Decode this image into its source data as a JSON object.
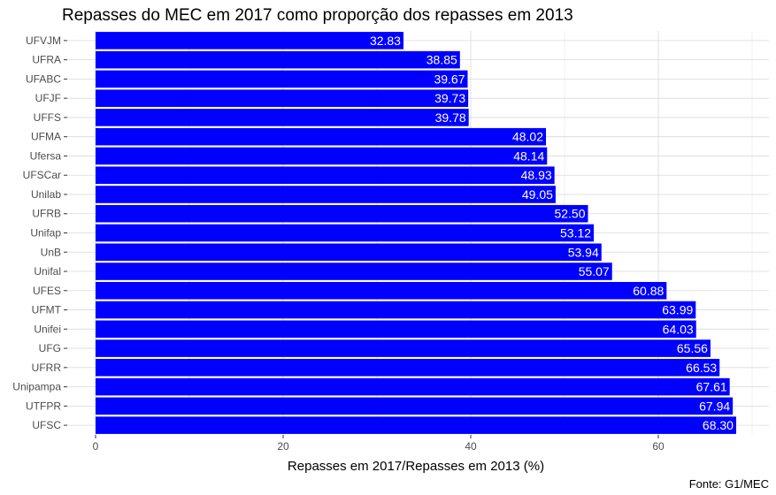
{
  "chart_data": {
    "type": "bar",
    "orientation": "horizontal",
    "title": "Repasses do MEC em 2017 como proporção dos repasses em 2013",
    "xlabel": "Repasses em 2017/Repasses em 2013 (%)",
    "ylabel": "",
    "caption": "Fonte: G1/MEC",
    "xlim": [
      0,
      70
    ],
    "x_ticks": [
      0,
      20,
      40,
      60
    ],
    "grid": true,
    "bar_color": "#0000ff",
    "categories": [
      "UFVJM",
      "UFRA",
      "UFABC",
      "UFJF",
      "UFFS",
      "UFMA",
      "Ufersa",
      "UFSCar",
      "Unilab",
      "UFRB",
      "Unifap",
      "UnB",
      "Unifal",
      "UFES",
      "UFMT",
      "Unifei",
      "UFG",
      "UFRR",
      "Unipampa",
      "UTFPR",
      "UFSC"
    ],
    "values": [
      32.83,
      38.85,
      39.67,
      39.73,
      39.78,
      48.02,
      48.14,
      48.93,
      49.05,
      52.5,
      53.12,
      53.94,
      55.07,
      60.88,
      63.99,
      64.03,
      65.56,
      66.53,
      67.61,
      67.94,
      68.3
    ],
    "value_labels": [
      "32.83",
      "38.85",
      "39.67",
      "39.73",
      "39.78",
      "48.02",
      "48.14",
      "48.93",
      "49.05",
      "52.50",
      "53.12",
      "53.94",
      "55.07",
      "60.88",
      "63.99",
      "64.03",
      "65.56",
      "66.53",
      "67.61",
      "67.94",
      "68.30"
    ]
  }
}
